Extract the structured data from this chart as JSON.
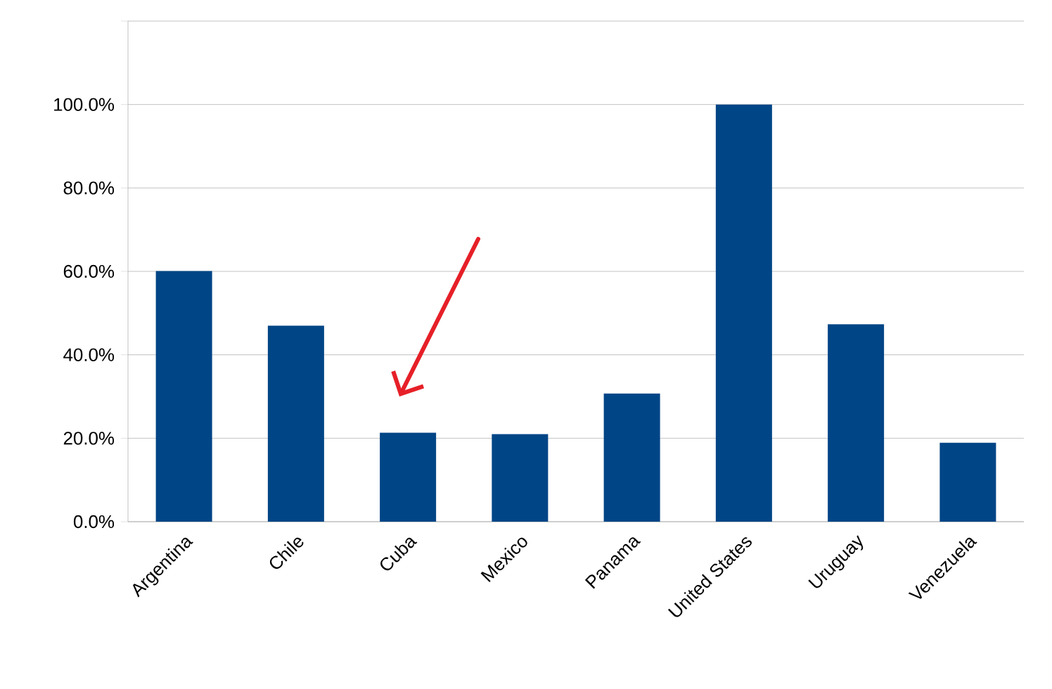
{
  "chart_data": {
    "type": "bar",
    "categories": [
      "Argentina",
      "Chile",
      "Cuba",
      "Mexico",
      "Panama",
      "United States",
      "Uruguay",
      "Venezuela"
    ],
    "values": [
      60.1,
      47.0,
      21.3,
      21.0,
      30.7,
      100.0,
      47.3,
      18.9
    ],
    "color": "#004586",
    "ylim": [
      0,
      120
    ],
    "yticks": [
      {
        "value": 0,
        "label": "0.0%"
      },
      {
        "value": 20,
        "label": "20.0%"
      },
      {
        "value": 40,
        "label": "40.0%"
      },
      {
        "value": 60,
        "label": "60.0%"
      },
      {
        "value": 80,
        "label": "80.0%"
      },
      {
        "value": 100,
        "label": "100.0%"
      },
      {
        "value": 120,
        "label": null
      }
    ],
    "grid": "y"
  }
}
